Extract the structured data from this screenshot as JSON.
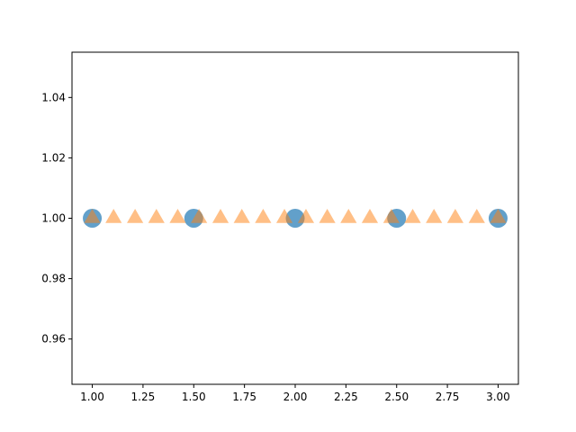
{
  "chart_data": {
    "type": "scatter",
    "title": "",
    "xlabel": "",
    "ylabel": "",
    "xlim": [
      0.9,
      3.1
    ],
    "ylim": [
      0.945,
      1.055
    ],
    "grid": false,
    "legend": "none",
    "x_ticks": [
      1.0,
      1.25,
      1.5,
      1.75,
      2.0,
      2.25,
      2.5,
      2.75,
      3.0
    ],
    "x_tick_labels": [
      "1.00",
      "1.25",
      "1.50",
      "1.75",
      "2.00",
      "2.25",
      "2.50",
      "2.75",
      "3.00"
    ],
    "y_ticks": [
      0.96,
      0.98,
      1.0,
      1.02,
      1.04
    ],
    "y_tick_labels": [
      "0.96",
      "0.98",
      "1.00",
      "1.02",
      "1.04"
    ],
    "series": [
      {
        "marker": "circle",
        "color": "#1f77b4",
        "x": [
          1.0,
          1.5,
          2.0,
          2.5,
          3.0
        ],
        "y": [
          1.0,
          1.0,
          1.0,
          1.0,
          1.0
        ]
      },
      {
        "marker": "triangle",
        "color": "#ff7f0e",
        "x": [
          1.0,
          1.105,
          1.211,
          1.316,
          1.421,
          1.526,
          1.632,
          1.737,
          1.842,
          1.947,
          2.053,
          2.158,
          2.263,
          2.368,
          2.474,
          2.579,
          2.684,
          2.789,
          2.895,
          3.0
        ],
        "y": [
          1.0,
          1.0,
          1.0,
          1.0,
          1.0,
          1.0,
          1.0,
          1.0,
          1.0,
          1.0,
          1.0,
          1.0,
          1.0,
          1.0,
          1.0,
          1.0,
          1.0,
          1.0,
          1.0,
          1.0
        ]
      }
    ]
  }
}
